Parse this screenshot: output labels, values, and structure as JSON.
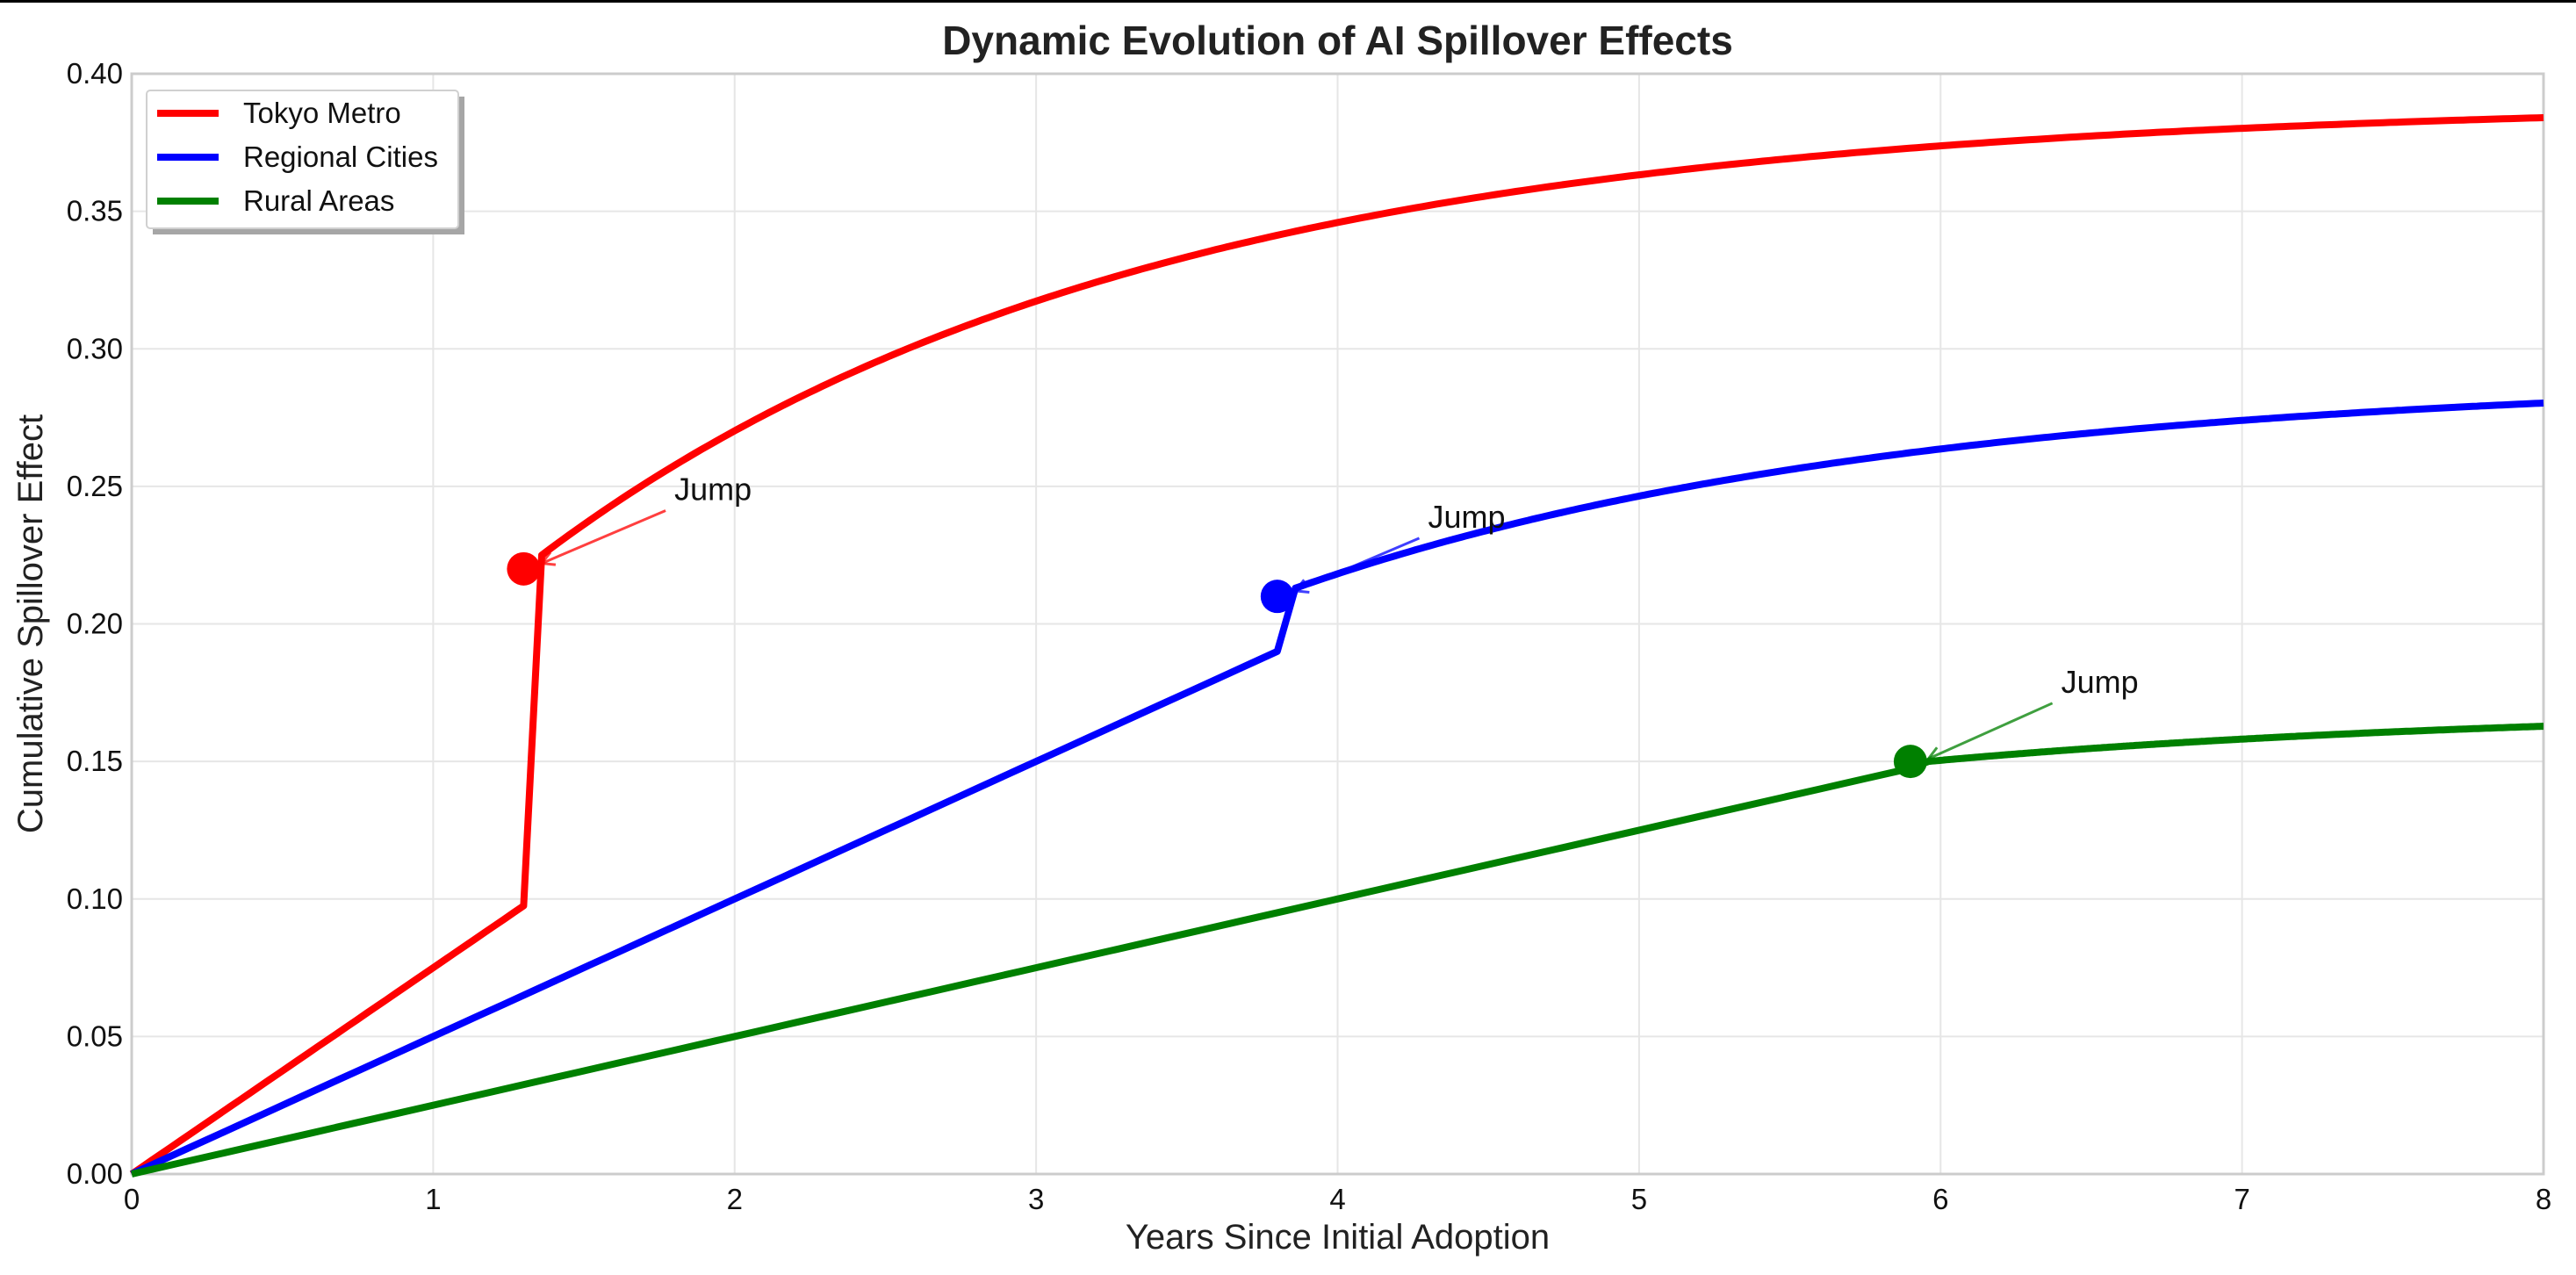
{
  "chart_data": {
    "type": "line",
    "title": "Dynamic Evolution of AI Spillover Effects",
    "xlabel": "Years Since Initial Adoption",
    "ylabel": "Cumulative Spillover Effect",
    "xlim": [
      0,
      8
    ],
    "ylim": [
      0,
      0.4
    ],
    "x_ticks": [
      0,
      1,
      2,
      3,
      4,
      5,
      6,
      7,
      8
    ],
    "y_ticks": [
      0.0,
      0.05,
      0.1,
      0.15,
      0.2,
      0.25,
      0.3,
      0.35,
      0.4
    ],
    "grid": true,
    "legend_position": "top-left",
    "series": [
      {
        "name": "Tokyo Metro",
        "color": "#ff0000",
        "jump_x": 1.3,
        "pre_jump_slope": 0.075,
        "post_jump_start": 0.225,
        "asymptote": 0.39,
        "rate": 0.5,
        "jump_marker": [
          1.3,
          0.22
        ],
        "annotation": {
          "text": "Jump",
          "xy": [
            1.36,
            0.222
          ],
          "xytext": [
            1.8,
            0.245
          ]
        }
      },
      {
        "name": "Regional Cities",
        "color": "#0000ff",
        "jump_x": 3.8,
        "pre_jump_slope": 0.05,
        "post_jump_start": 0.213,
        "asymptote": 0.29,
        "rate": 0.5,
        "jump_marker": [
          3.8,
          0.21
        ],
        "annotation": {
          "text": "Jump",
          "xy": [
            3.86,
            0.212
          ],
          "xytext": [
            4.3,
            0.235
          ]
        }
      },
      {
        "name": "Rural Areas",
        "color": "#008000",
        "jump_x": 5.9,
        "pre_jump_slope": 0.025,
        "post_jump_start": 0.15,
        "asymptote": 0.17,
        "rate": 0.5,
        "jump_marker": [
          5.9,
          0.15
        ],
        "annotation": {
          "text": "Jump",
          "xy": [
            5.96,
            0.151
          ],
          "xytext": [
            6.4,
            0.175
          ]
        }
      }
    ]
  }
}
